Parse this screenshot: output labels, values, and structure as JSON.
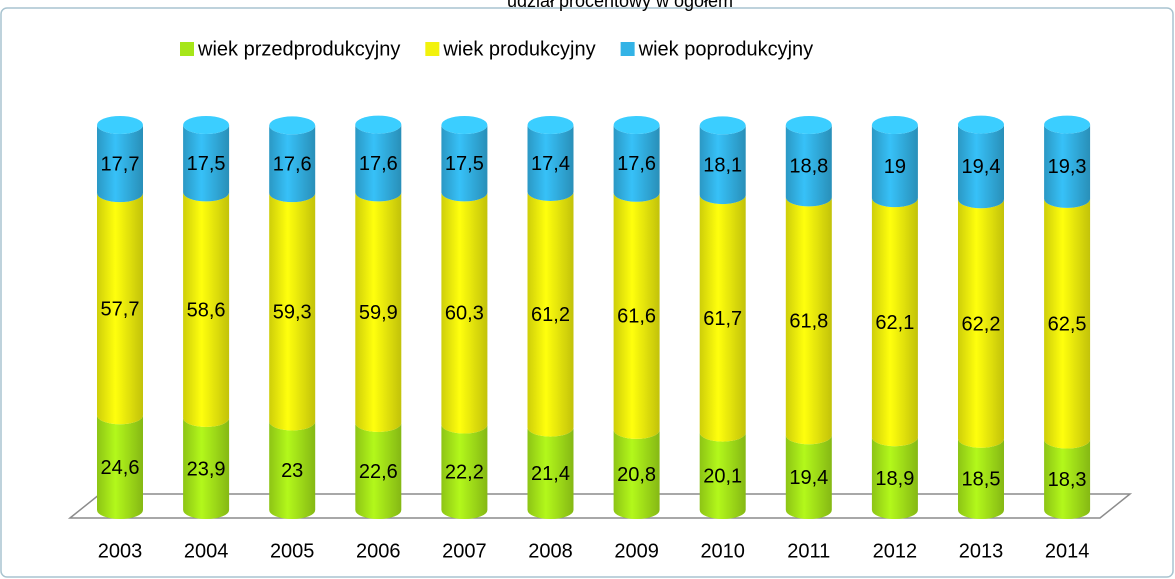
{
  "chart_data": {
    "type": "stacked_cylinder",
    "title": "udział procentowy w ogółem",
    "categories": [
      "2003",
      "2004",
      "2005",
      "2006",
      "2007",
      "2008",
      "2009",
      "2010",
      "2011",
      "2012",
      "2013",
      "2014"
    ],
    "series": [
      {
        "name": "wiek przedprodukcyjny",
        "color": "#a6e619",
        "values": [
          24.6,
          23.9,
          23,
          22.6,
          22.2,
          21.4,
          20.8,
          20.1,
          19.4,
          18.9,
          18.5,
          18.3
        ],
        "value_labels": [
          "24,6",
          "23,9",
          "23",
          "22,6",
          "22,2",
          "21,4",
          "20,8",
          "20,1",
          "19,4",
          "18,9",
          "18,5",
          "18,3"
        ]
      },
      {
        "name": "wiek produkcyjny",
        "color": "#f2f20c",
        "values": [
          57.7,
          58.6,
          59.3,
          59.9,
          60.3,
          61.2,
          61.6,
          61.7,
          61.8,
          62.1,
          62.2,
          62.5
        ],
        "value_labels": [
          "57,7",
          "58,6",
          "59,3",
          "59,9",
          "60,3",
          "61,2",
          "61,6",
          "61,7",
          "61,8",
          "62,1",
          "62,2",
          "62,5"
        ]
      },
      {
        "name": "wiek poprodukcyjny",
        "color": "#33b3e6",
        "values": [
          17.7,
          17.5,
          17.6,
          17.6,
          17.5,
          17.4,
          17.6,
          18.1,
          18.8,
          19,
          19.4,
          19.3
        ],
        "value_labels": [
          "17,7",
          "17,5",
          "17,6",
          "17,6",
          "17,5",
          "17,4",
          "17,6",
          "18,1",
          "18,8",
          "19",
          "19,4",
          "19,3"
        ]
      }
    ],
    "ylim": [
      0,
      100
    ],
    "legend": "top"
  }
}
